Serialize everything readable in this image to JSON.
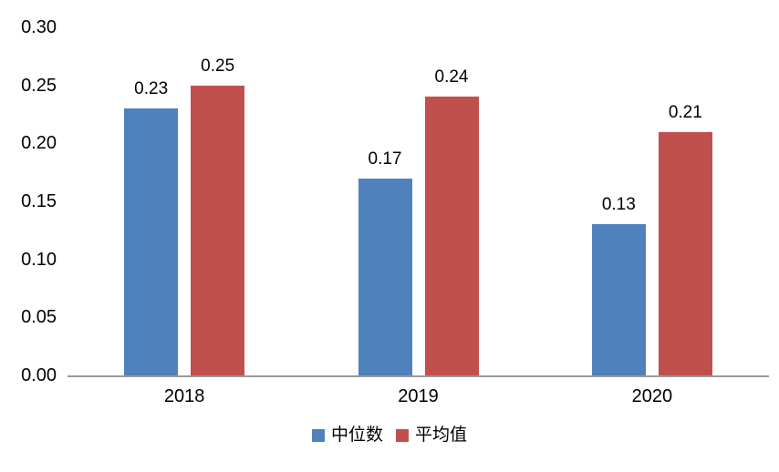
{
  "chart_data": {
    "type": "bar",
    "title": "",
    "xlabel": "",
    "ylabel": "",
    "categories": [
      "2018",
      "2019",
      "2020"
    ],
    "series": [
      {
        "name": "中位数",
        "color": "#4F81BD",
        "values": [
          0.23,
          0.17,
          0.13
        ]
      },
      {
        "name": "平均值",
        "color": "#C0504D",
        "values": [
          0.25,
          0.24,
          0.21
        ]
      }
    ],
    "data_labels": [
      [
        "0.23",
        "0.17",
        "0.13"
      ],
      [
        "0.25",
        "0.24",
        "0.21"
      ]
    ],
    "ytick_labels": [
      "0.00",
      "0.05",
      "0.10",
      "0.15",
      "0.20",
      "0.25",
      "0.30"
    ],
    "ylim": [
      0,
      0.3
    ],
    "grid": false,
    "legend_position": "bottom",
    "axis_line_color": "#9B9B9B",
    "text_color": "#000000",
    "background_color": "#FFFFFF"
  }
}
